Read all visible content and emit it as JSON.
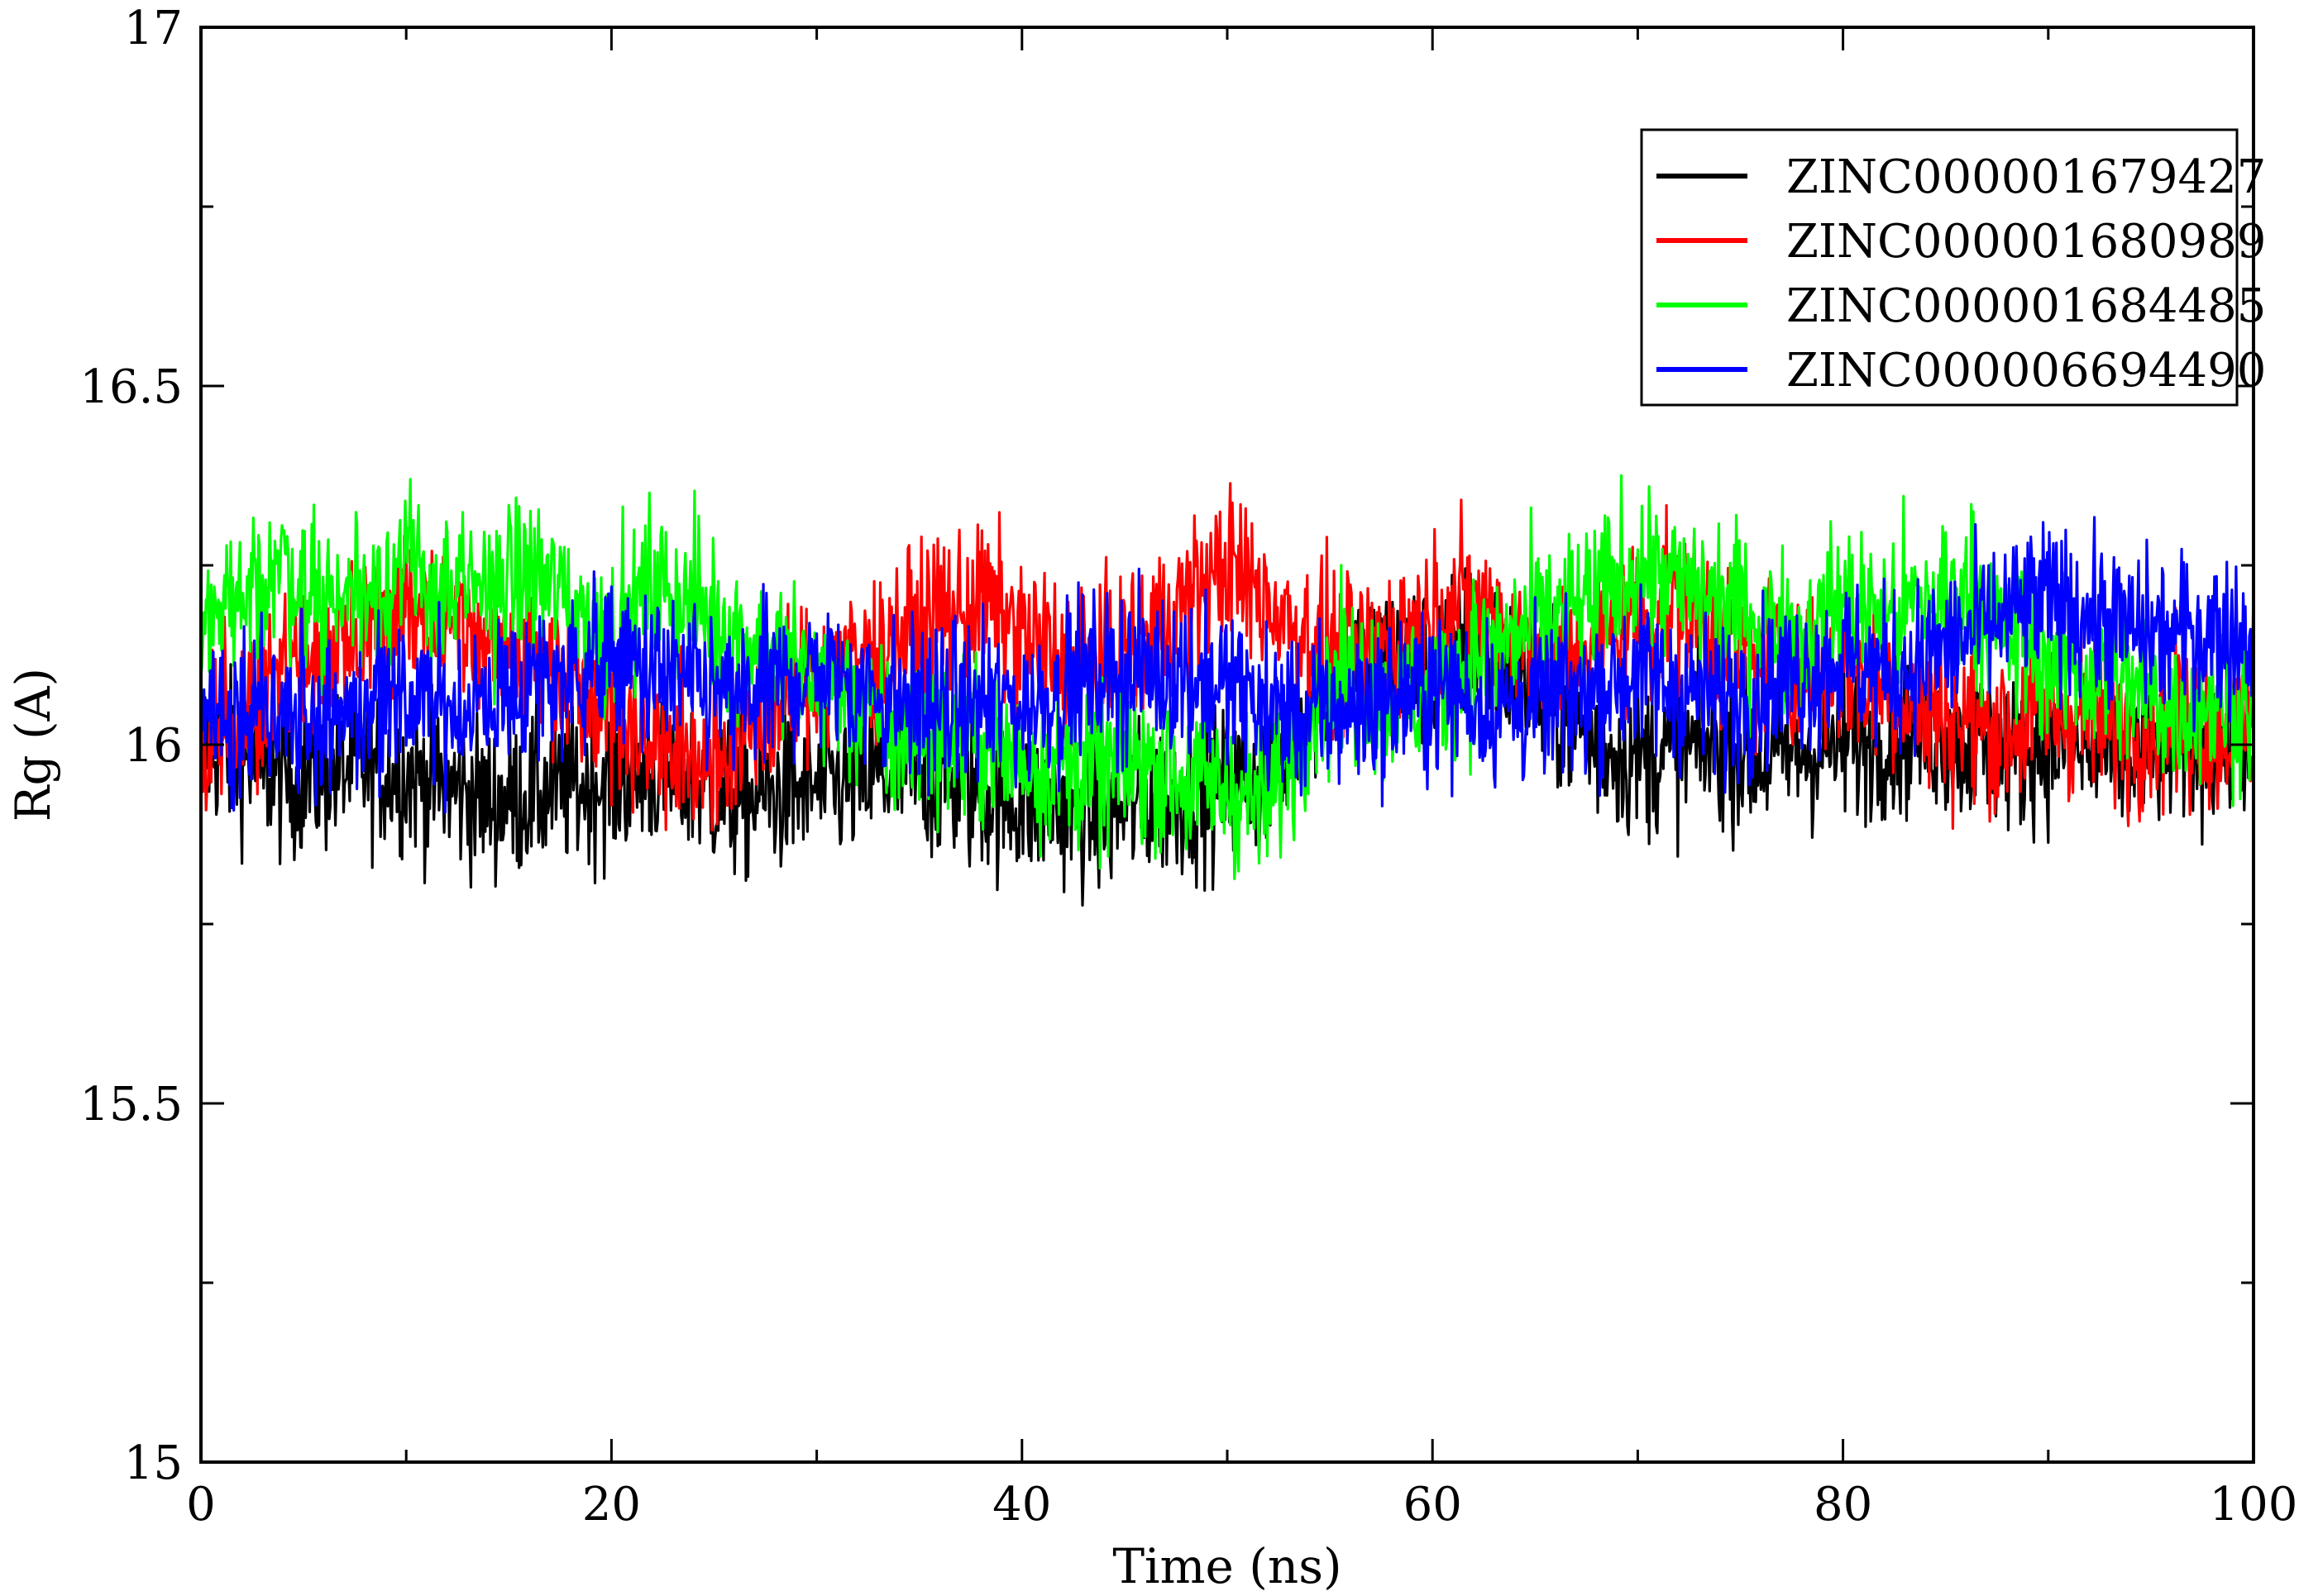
{
  "chart_data": {
    "type": "line",
    "title": "",
    "xlabel": "Time (ns)",
    "ylabel": "Rg (A)",
    "xlim": [
      0,
      100
    ],
    "ylim": [
      15,
      17
    ],
    "xticks": [
      0,
      20,
      40,
      60,
      80,
      100
    ],
    "xtick_labels": [
      "0",
      "20",
      "40",
      "60",
      "80",
      "100"
    ],
    "yticks": [
      15,
      15.5,
      16,
      16.5,
      17
    ],
    "ytick_labels": [
      "15",
      "15.5",
      "16",
      "16.5",
      "17"
    ],
    "grid": false,
    "legend_position": "top-right",
    "series": [
      {
        "name": "ZINC000001679427",
        "color": "#000000",
        "x": [
          0,
          2,
          4,
          6,
          8,
          10,
          12,
          14,
          16,
          18,
          20,
          22,
          24,
          26,
          28,
          30,
          32,
          34,
          36,
          38,
          40,
          42,
          44,
          46,
          48,
          50,
          52,
          54,
          56,
          58,
          60,
          62,
          64,
          66,
          68,
          70,
          72,
          74,
          76,
          78,
          80,
          82,
          84,
          86,
          88,
          90,
          92,
          94,
          96,
          98,
          100
        ],
        "values": [
          16.0,
          15.98,
          15.95,
          15.96,
          15.97,
          15.96,
          15.94,
          15.92,
          15.93,
          15.94,
          15.95,
          15.96,
          15.95,
          15.92,
          15.93,
          15.94,
          15.95,
          15.96,
          15.95,
          15.93,
          15.92,
          15.91,
          15.9,
          15.92,
          15.93,
          15.94,
          15.95,
          16.05,
          16.1,
          16.12,
          16.11,
          16.15,
          16.1,
          16.05,
          16.0,
          15.98,
          15.99,
          16.0,
          15.98,
          15.99,
          16.0,
          16.01,
          16.02,
          16.0,
          15.99,
          16.0,
          15.99,
          15.98,
          16.0,
          16.0,
          16.0
        ]
      },
      {
        "name": "ZINC000001680989",
        "color": "#ff0000",
        "x": [
          0,
          2,
          4,
          6,
          8,
          10,
          12,
          14,
          16,
          18,
          20,
          22,
          24,
          26,
          28,
          30,
          32,
          34,
          36,
          38,
          40,
          42,
          44,
          46,
          48,
          50,
          52,
          54,
          56,
          58,
          60,
          62,
          64,
          66,
          68,
          70,
          72,
          74,
          76,
          78,
          80,
          82,
          84,
          86,
          88,
          90,
          92,
          94,
          96,
          98,
          100
        ],
        "values": [
          16.0,
          16.05,
          16.1,
          16.12,
          16.15,
          16.2,
          16.18,
          16.15,
          16.12,
          16.1,
          16.05,
          16.0,
          15.98,
          16.0,
          16.05,
          16.1,
          16.12,
          16.15,
          16.18,
          16.2,
          16.15,
          16.12,
          16.1,
          16.15,
          16.2,
          16.25,
          16.2,
          16.15,
          16.12,
          16.15,
          16.18,
          16.2,
          16.15,
          16.12,
          16.15,
          16.18,
          16.2,
          16.15,
          16.12,
          16.1,
          16.1,
          16.08,
          16.05,
          16.03,
          16.02,
          16.05,
          16.04,
          16.02,
          16.03,
          16.02,
          16.02
        ]
      },
      {
        "name": "ZINC000001684485",
        "color": "#00ff00",
        "x": [
          0,
          2,
          4,
          6,
          8,
          10,
          12,
          14,
          16,
          18,
          20,
          22,
          24,
          26,
          28,
          30,
          32,
          34,
          36,
          38,
          40,
          42,
          44,
          46,
          48,
          50,
          52,
          54,
          56,
          58,
          60,
          62,
          64,
          66,
          68,
          70,
          72,
          74,
          76,
          78,
          80,
          82,
          84,
          86,
          88,
          90,
          92,
          94,
          96,
          98,
          100
        ],
        "values": [
          16.15,
          16.22,
          16.25,
          16.2,
          16.22,
          16.25,
          16.2,
          16.22,
          16.24,
          16.2,
          16.15,
          16.22,
          16.2,
          16.15,
          16.12,
          16.1,
          16.05,
          16.0,
          16.02,
          16.0,
          15.98,
          15.97,
          15.96,
          15.98,
          15.95,
          15.94,
          15.92,
          16.05,
          16.1,
          16.05,
          16.08,
          16.12,
          16.15,
          16.18,
          16.2,
          16.25,
          16.22,
          16.2,
          16.18,
          16.15,
          16.2,
          16.18,
          16.2,
          16.22,
          16.15,
          16.12,
          16.1,
          16.08,
          16.05,
          16.06,
          16.06
        ]
      },
      {
        "name": "ZINC000006694490",
        "color": "#0000ff",
        "x": [
          0,
          2,
          4,
          6,
          8,
          10,
          12,
          14,
          16,
          18,
          20,
          22,
          24,
          26,
          28,
          30,
          32,
          34,
          36,
          38,
          40,
          42,
          44,
          46,
          48,
          50,
          52,
          54,
          56,
          58,
          60,
          62,
          64,
          66,
          68,
          70,
          72,
          74,
          76,
          78,
          80,
          82,
          84,
          86,
          88,
          90,
          92,
          94,
          96,
          98,
          100
        ],
        "values": [
          16.05,
          16.06,
          16.05,
          16.04,
          16.05,
          16.06,
          16.05,
          16.06,
          16.08,
          16.1,
          16.12,
          16.1,
          16.08,
          16.06,
          16.08,
          16.1,
          16.08,
          16.06,
          16.05,
          16.06,
          16.05,
          16.08,
          16.1,
          16.1,
          16.1,
          16.08,
          16.05,
          16.04,
          16.05,
          16.06,
          16.08,
          16.06,
          16.05,
          16.06,
          16.08,
          16.1,
          16.08,
          16.06,
          16.08,
          16.1,
          16.12,
          16.1,
          16.12,
          16.15,
          16.18,
          16.2,
          16.18,
          16.16,
          16.15,
          16.16,
          16.15
        ]
      }
    ]
  }
}
